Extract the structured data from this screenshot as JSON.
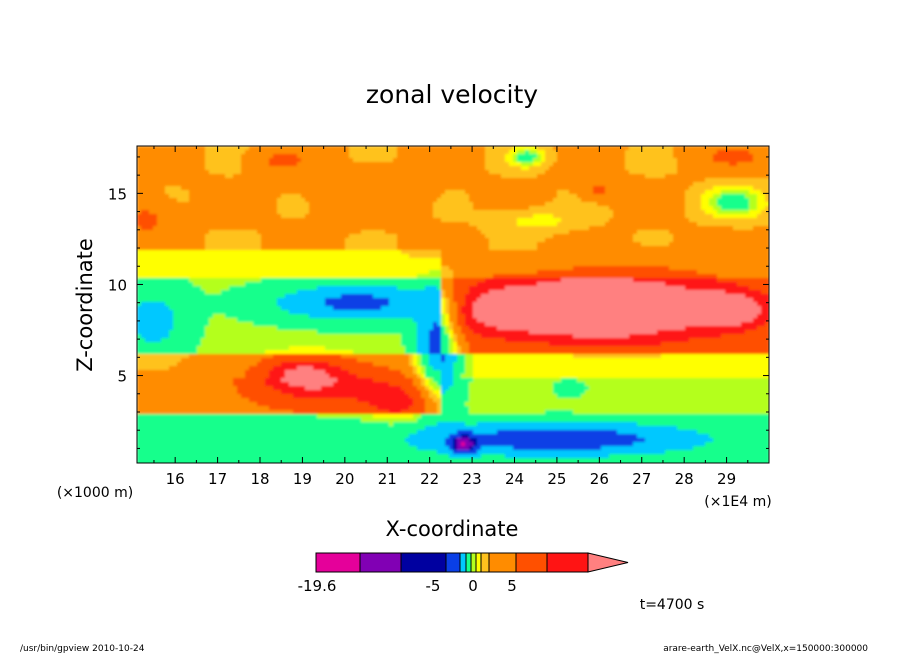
{
  "chart_data": {
    "type": "heatmap",
    "title": "zonal velocity",
    "xlabel": "X-coordinate",
    "ylabel": "Z-coordinate",
    "x_unit": "(×1E4 m)",
    "y_unit": "(×1000 m)",
    "xlim": [
      15.1,
      30.0
    ],
    "ylim": [
      0.2,
      17.6
    ],
    "x_ticks": [
      "16",
      "17",
      "18",
      "19",
      "20",
      "21",
      "22",
      "23",
      "24",
      "25",
      "26",
      "27",
      "28",
      "29"
    ],
    "x_tick_values": [
      16,
      17,
      18,
      19,
      20,
      21,
      22,
      23,
      24,
      25,
      26,
      27,
      28,
      29
    ],
    "y_ticks": [
      "5",
      "10",
      "15"
    ],
    "y_tick_values": [
      5,
      10,
      15
    ],
    "colorbar": {
      "labels": [
        "-19.6",
        "-5",
        "0",
        "5"
      ],
      "label_values": [
        -19.6,
        -5,
        0,
        5
      ],
      "colors": [
        "#e5009a",
        "#8100b4",
        "#0000a0",
        "#0a3fe6",
        "#00c8ff",
        "#18ff8c",
        "#b4ff1e",
        "#ffff00",
        "#ffc21e",
        "#ff8c00",
        "#ff5000",
        "#ff1414",
        "#ff8080"
      ]
    },
    "annotation": "t=4700 s",
    "footer_left": "/usr/bin/gpview   2010-10-24",
    "footer_right": "arare-earth_VelX.nc@VelX,x=150000:300000",
    "field_features": [
      {
        "x": 25.6,
        "z": 9.3,
        "u": 9.0,
        "sx": 0.6,
        "sz": 0.7
      },
      {
        "x": 25.6,
        "z": 8.6,
        "u": 7.5,
        "sx": 1.6,
        "sz": 1.4
      },
      {
        "x": 29.0,
        "z": 8.6,
        "u": 7.0,
        "sx": 0.9,
        "sz": 0.9
      },
      {
        "x": 27.0,
        "z": 8.8,
        "u": 6.5,
        "sx": 2.2,
        "sz": 1.8
      },
      {
        "x": 23.6,
        "z": 8.7,
        "u": 6.0,
        "sx": 1.3,
        "sz": 1.4
      },
      {
        "x": 19.0,
        "z": 5.1,
        "u": 5.5,
        "sx": 0.9,
        "sz": 0.9
      },
      {
        "x": 19.8,
        "z": 4.4,
        "u": 4.0,
        "sx": 1.9,
        "sz": 1.3
      },
      {
        "x": 21.3,
        "z": 3.4,
        "u": 3.5,
        "sx": 0.8,
        "sz": 1.0
      },
      {
        "x": 20.3,
        "z": 9.0,
        "u": -7.0,
        "sx": 2.0,
        "sz": 1.0
      },
      {
        "x": 22.2,
        "z": 6.5,
        "u": -8.0,
        "sx": 0.5,
        "sz": 3.0
      },
      {
        "x": 25.0,
        "z": 1.5,
        "u": -7.5,
        "sx": 3.0,
        "sz": 0.8
      },
      {
        "x": 22.8,
        "z": 1.2,
        "u": -10.0,
        "sx": 0.3,
        "sz": 0.5
      },
      {
        "x": 15.5,
        "z": 8.0,
        "u": -4.0,
        "sx": 0.8,
        "sz": 2.0
      },
      {
        "x": 29.2,
        "z": 14.5,
        "u": -4.0,
        "sx": 0.7,
        "sz": 0.8
      },
      {
        "x": 24.3,
        "z": 17.0,
        "u": -4.0,
        "sx": 0.4,
        "sz": 0.5
      },
      {
        "x": 24.5,
        "z": 13.5,
        "u": -1.5,
        "sx": 1.0,
        "sz": 0.6
      },
      {
        "x": 25.3,
        "z": 4.3,
        "u": -1.5,
        "sx": 0.3,
        "sz": 0.4
      },
      {
        "x": 18.5,
        "z": 16.8,
        "u": 2.5,
        "sx": 0.6,
        "sz": 0.6
      },
      {
        "x": 20.6,
        "z": 15.0,
        "u": 1.5,
        "sx": 1.2,
        "sz": 1.2
      },
      {
        "x": 22.3,
        "z": 12.0,
        "u": 1.5,
        "sx": 0.6,
        "sz": 0.7
      },
      {
        "x": 26.0,
        "z": 15.2,
        "u": 2.5,
        "sx": 0.4,
        "sz": 0.5
      },
      {
        "x": 15.3,
        "z": 13.6,
        "u": 2.5,
        "sx": 0.6,
        "sz": 1.0
      },
      {
        "x": 29.2,
        "z": 17.0,
        "u": 2.5,
        "sx": 0.8,
        "sz": 0.6
      }
    ]
  }
}
